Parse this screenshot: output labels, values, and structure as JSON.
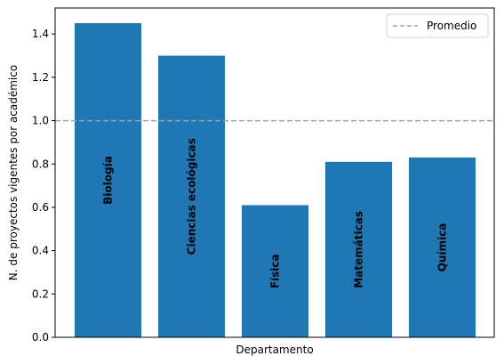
{
  "chart_data": {
    "type": "bar",
    "categories": [
      "Biología",
      "Ciencias ecológicas",
      "Física",
      "Matemáticas",
      "Química"
    ],
    "values": [
      1.45,
      1.3,
      0.61,
      0.81,
      0.83
    ],
    "xlabel": "Departamento",
    "ylabel": "N. de proyectos vigentes por académico",
    "ylim": [
      0,
      1.52
    ],
    "yticks": [
      0.0,
      0.2,
      0.4,
      0.6,
      0.8,
      1.0,
      1.2,
      1.4
    ],
    "ytick_labels": [
      "0.0",
      "0.2",
      "0.4",
      "0.6",
      "0.8",
      "1.0",
      "1.2",
      "1.4"
    ],
    "bar_color": "#1f77b4",
    "reference_line": {
      "label": "Promedio",
      "value": 1.0,
      "color": "#a0a0a0",
      "style": "dashed"
    },
    "legend": {
      "position": "top-right",
      "entries": [
        "Promedio"
      ]
    },
    "grid": false
  }
}
